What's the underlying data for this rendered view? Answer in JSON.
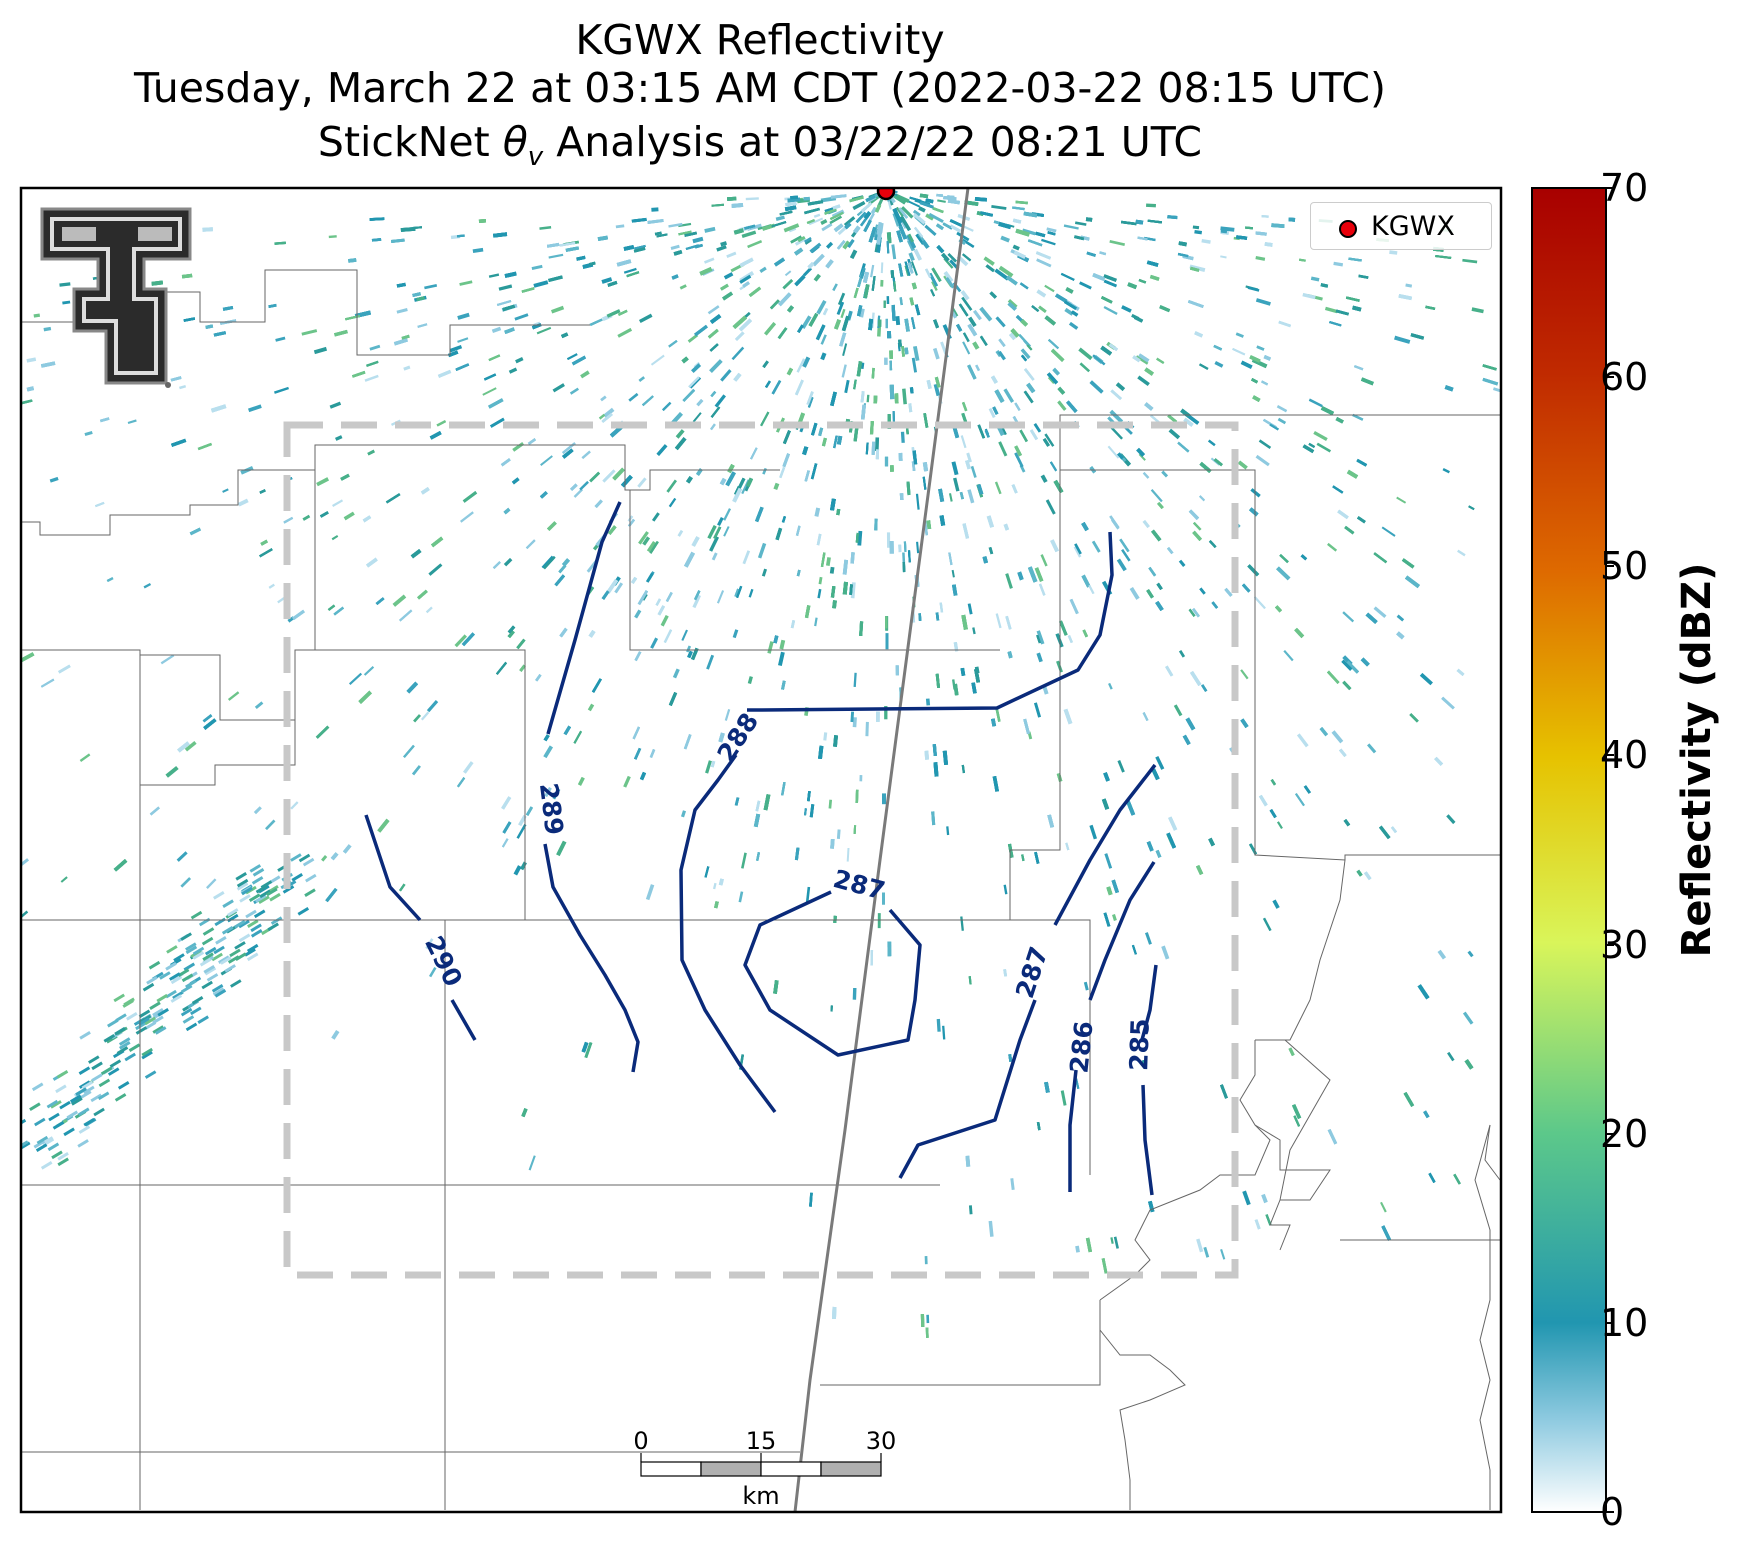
{
  "title": {
    "line1": "KGWX Reflectivity",
    "line2": "Tuesday, March 22 at 03:15 AM CDT (2022-03-22 08:15 UTC)",
    "line3_prefix": "StickNet ",
    "line3_symbol": "θ",
    "line3_subscript": "v",
    "line3_suffix": " Analysis at 03/22/22 08:21 UTC"
  },
  "legend": {
    "label": "KGWX",
    "marker_color": "#e8000b"
  },
  "colorbar": {
    "label": "Reflectivity (dBZ)",
    "ticks": [
      "0",
      "10",
      "20",
      "30",
      "40",
      "50",
      "60",
      "70"
    ],
    "colors": [
      "#ffffff",
      "#2196b0",
      "#5cc88a",
      "#d9f55a",
      "#e6c200",
      "#de6a00",
      "#c02a00",
      "#a80000"
    ]
  },
  "contours": {
    "color": "#0a2a7a",
    "labels": [
      "290",
      "289",
      "288",
      "287",
      "287",
      "286",
      "285"
    ]
  },
  "scalebar": {
    "ticks": [
      "0",
      "15",
      "30"
    ],
    "unit": "km"
  },
  "logo": {
    "name": "Texas Tech Double T"
  }
}
